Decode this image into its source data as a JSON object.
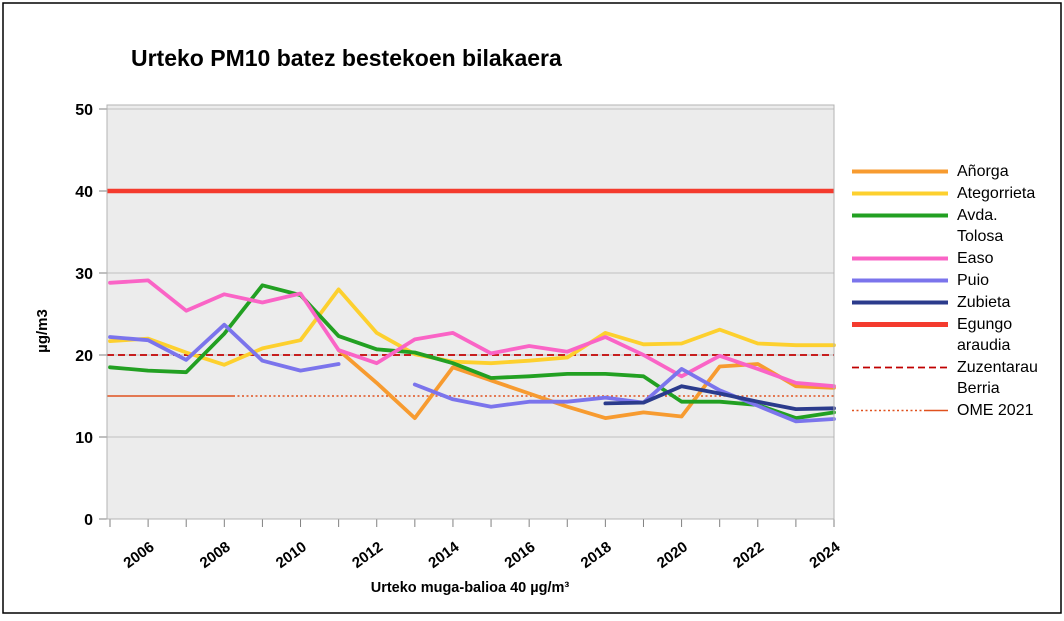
{
  "title": "Urteko PM10 batez bestekoen bilakaera",
  "y_axis_title": "µg/m3",
  "x_axis_footer": "Urteko muga-balioa 40 µg/m³",
  "chart_data": {
    "type": "line",
    "title": "Urteko PM10 batez bestekoen bilakaera",
    "ylabel": "µg/m3",
    "xlabel": "Urteko muga-balioa 40 µg/m³",
    "ylim": [
      0,
      50
    ],
    "y_ticks": [
      0,
      10,
      20,
      30,
      40,
      50
    ],
    "grid": "horizontal",
    "legend_position": "right",
    "x": [
      2005,
      2006,
      2007,
      2008,
      2009,
      2010,
      2011,
      2012,
      2013,
      2014,
      2015,
      2016,
      2017,
      2018,
      2019,
      2020,
      2021,
      2022,
      2023,
      2024
    ],
    "x_tick_label_years": [
      2006,
      2008,
      2010,
      2012,
      2014,
      2016,
      2018,
      2020,
      2022,
      2024
    ],
    "series": [
      {
        "name": "Añorga",
        "color": "#f79b30",
        "width": 3.8,
        "values": [
          null,
          null,
          null,
          null,
          null,
          null,
          20.6,
          16.6,
          12.3,
          18.5,
          16.9,
          15.3,
          13.7,
          12.3,
          13,
          12.5,
          18.6,
          18.9,
          16.2,
          16
        ]
      },
      {
        "name": "Ategorrieta",
        "color": "#fdd02e",
        "width": 3.8,
        "values": [
          21.7,
          22,
          20.3,
          18.8,
          20.8,
          21.8,
          28,
          22.7,
          20.1,
          19.2,
          19,
          19.3,
          19.7,
          22.7,
          21.3,
          21.4,
          23.1,
          21.4,
          21.2,
          21.2
        ]
      },
      {
        "name": "Avda. Tolosa",
        "color": "#22a022",
        "width": 3.8,
        "values": [
          18.5,
          18.1,
          17.9,
          22.6,
          28.5,
          27.3,
          22.3,
          20.7,
          20.3,
          19,
          17.2,
          17.4,
          17.7,
          17.7,
          17.4,
          14.3,
          14.3,
          13.9,
          12.3,
          13
        ]
      },
      {
        "name": "Easo",
        "color": "#fa64c6",
        "width": 3.8,
        "values": [
          28.8,
          29.1,
          25.4,
          27.4,
          26.4,
          27.5,
          20.6,
          19,
          21.9,
          22.7,
          20.2,
          21.1,
          20.4,
          22.2,
          20,
          17.4,
          19.9,
          18.3,
          16.6,
          16.2
        ]
      },
      {
        "name": "Puio",
        "color": "#7b74ec",
        "width": 3.8,
        "values": [
          22.2,
          21.8,
          19.4,
          23.7,
          19.3,
          18.1,
          18.9,
          null,
          16.4,
          14.6,
          13.7,
          14.3,
          14.3,
          14.8,
          14.2,
          18.3,
          15.7,
          13.8,
          11.9,
          12.2
        ]
      },
      {
        "name": "Zubieta",
        "color": "#2b3b8c",
        "width": 3.8,
        "values": [
          null,
          null,
          null,
          null,
          null,
          null,
          null,
          null,
          null,
          null,
          null,
          null,
          null,
          14.1,
          14.2,
          16.2,
          15.3,
          14.3,
          13.4,
          13.5
        ]
      }
    ],
    "reference_lines": [
      {
        "name": "Egungo araudia",
        "value": 40,
        "color": "#f43b2e",
        "width": 4.5,
        "style": "solid"
      },
      {
        "name": "Zuzentarau Berria",
        "value": 20,
        "color": "#c00000",
        "width": 1.8,
        "style": "dashed"
      },
      {
        "name": "OME 2021",
        "value": 15,
        "color": "#e0511e",
        "width": 1.4,
        "style": "dotted",
        "solid_until_x": 233
      }
    ]
  },
  "legend": {
    "items": [
      {
        "label_lines": [
          "Añorga"
        ],
        "color": "#f79b30",
        "style": "solid",
        "width": 4
      },
      {
        "label_lines": [
          "Ategorrieta"
        ],
        "color": "#fdd02e",
        "style": "solid",
        "width": 4
      },
      {
        "label_lines": [
          "Avda.",
          "Tolosa"
        ],
        "color": "#22a022",
        "style": "solid",
        "width": 4
      },
      {
        "label_lines": [
          "Easo"
        ],
        "color": "#fa64c6",
        "style": "solid",
        "width": 4
      },
      {
        "label_lines": [
          "Puio"
        ],
        "color": "#7b74ec",
        "style": "solid",
        "width": 4
      },
      {
        "label_lines": [
          "Zubieta"
        ],
        "color": "#2b3b8c",
        "style": "solid",
        "width": 4
      },
      {
        "label_lines": [
          "Egungo",
          "araudia"
        ],
        "color": "#f43b2e",
        "style": "solid",
        "width": 5
      },
      {
        "label_lines": [
          "Zuzentarau",
          "Berria"
        ],
        "color": "#c00000",
        "style": "dashed",
        "width": 1.8
      },
      {
        "label_lines": [
          "OME 2021"
        ],
        "color": "#e0511e",
        "style": "dotted",
        "width": 1.4
      }
    ]
  },
  "plot_style": {
    "plot_bg": "#ececec",
    "gridline_color": "#bfbfbf",
    "plot_border_color": "#b3b3b3",
    "tick_color": "#808080",
    "outer_border_color": "#000000"
  }
}
